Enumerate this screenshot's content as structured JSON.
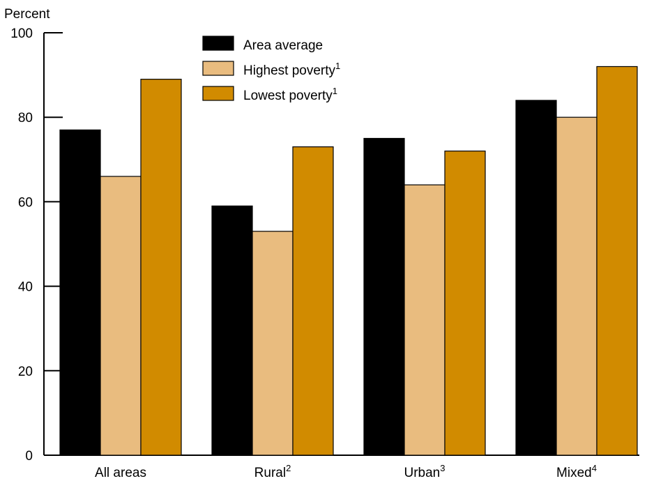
{
  "chart_data": {
    "type": "bar",
    "ylabel": "Percent",
    "ylim": [
      0,
      100
    ],
    "yticks": [
      "0",
      "20",
      "40",
      "60",
      "80",
      "100"
    ],
    "categories": [
      {
        "label": "All areas",
        "sup": ""
      },
      {
        "label": "Rural",
        "sup": "2"
      },
      {
        "label": "Urban",
        "sup": "3"
      },
      {
        "label": "Mixed",
        "sup": "4"
      }
    ],
    "series": [
      {
        "name": "Area average",
        "sup": "",
        "color": "#000000",
        "values": [
          77,
          59,
          75,
          84
        ]
      },
      {
        "name": "Highest poverty",
        "sup": "1",
        "color": "#e9bc7f",
        "values": [
          66,
          53,
          64,
          80
        ]
      },
      {
        "name": "Lowest poverty",
        "sup": "1",
        "color": "#d18b00",
        "values": [
          89,
          73,
          72,
          92
        ]
      }
    ],
    "legend_position": "top-center",
    "grid": false
  }
}
